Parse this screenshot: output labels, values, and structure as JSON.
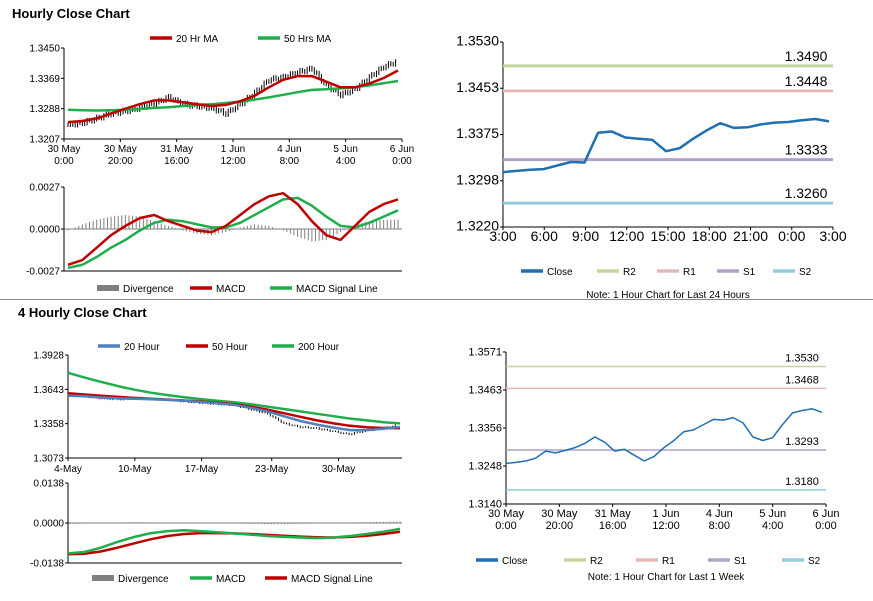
{
  "titles": {
    "hourly": "Hourly Close Chart",
    "four_hourly": "4 Hourly Close Chart"
  },
  "colors": {
    "close": "#1f6fb2",
    "ma_red": "#c00000",
    "ma_green": "#1fae4b",
    "ma_blue": "#4f81bd",
    "divergence": "#7f7f7f",
    "r2": "#c3d69b",
    "r1": "#e6b9b8",
    "s1": "#b3a2c7",
    "s2": "#93cddd",
    "price_bar": "#000000",
    "grid": "#d9d9d9"
  },
  "chart_data": [
    {
      "id": "hourly_price",
      "type": "line",
      "ylim": [
        1.3207,
        1.345
      ],
      "yticks": [
        "1.3450",
        "1.3369",
        "1.3288",
        "1.3207"
      ],
      "xticks": [
        [
          "30 May",
          "0:00"
        ],
        [
          "30 May",
          "20:00"
        ],
        [
          "31 May",
          "16:00"
        ],
        [
          "1 Jun",
          "12:00"
        ],
        [
          "4 Jun",
          "8:00"
        ],
        [
          "5 Jun",
          "4:00"
        ],
        [
          "6 Jun",
          "0:00"
        ]
      ],
      "price": [
        1.3245,
        1.325,
        1.3262,
        1.3275,
        1.3282,
        1.329,
        1.3302,
        1.3318,
        1.33,
        1.3295,
        1.329,
        1.3275,
        1.33,
        1.333,
        1.3365,
        1.3372,
        1.3385,
        1.3395,
        1.335,
        1.3325,
        1.334,
        1.3372,
        1.34,
        1.3415
      ],
      "series": [
        {
          "name": "20 Hr MA",
          "color": "#c00000",
          "values": [
            1.3252,
            1.3255,
            1.3262,
            1.3275,
            1.3288,
            1.33,
            1.331,
            1.331,
            1.3305,
            1.33,
            1.3295,
            1.3298,
            1.3308,
            1.3322,
            1.3345,
            1.3365,
            1.3375,
            1.3375,
            1.336,
            1.3345,
            1.3345,
            1.3355,
            1.337,
            1.339
          ]
        },
        {
          "name": "50 Hrs MA",
          "color": "#1fae4b",
          "values": [
            1.3285,
            1.3284,
            1.3283,
            1.3284,
            1.3285,
            1.3287,
            1.329,
            1.3292,
            1.3295,
            1.3298,
            1.33,
            1.3303,
            1.3307,
            1.3312,
            1.3318,
            1.3325,
            1.3332,
            1.3338,
            1.334,
            1.3342,
            1.3345,
            1.335,
            1.3356,
            1.3362
          ]
        }
      ]
    },
    {
      "id": "hourly_macd",
      "type": "line",
      "ylim": [
        -0.0027,
        0.0027
      ],
      "yticks": [
        "0.0027",
        "0.0000",
        "-0.0027"
      ],
      "divergence": [
        -0.0001,
        0.0003,
        0.0006,
        0.0008,
        0.0009,
        0.0008,
        0.0005,
        0.0002,
        -0.0001,
        -0.0003,
        -0.0004,
        -0.0002,
        0.0001,
        0.0003,
        0.0002,
        -0.0001,
        -0.0005,
        -0.0008,
        -0.0007,
        -0.0002,
        0.0003,
        0.0005,
        0.0006,
        0.0006
      ],
      "series": [
        {
          "name": "MACD",
          "color": "#c00000",
          "values": [
            -0.0023,
            -0.002,
            -0.0012,
            -0.0004,
            0.0002,
            0.0007,
            0.0009,
            0.0005,
            0.0002,
            -0.0001,
            -0.0002,
            0.0002,
            0.0009,
            0.0016,
            0.0021,
            0.0023,
            0.0016,
            0.0005,
            -0.0004,
            -0.0007,
            0.0002,
            0.0011,
            0.0016,
            0.0019
          ]
        },
        {
          "name": "MACD Signal Line",
          "color": "#1fae4b",
          "values": [
            -0.0025,
            -0.0023,
            -0.0018,
            -0.0012,
            -0.0007,
            -0.0001,
            0.0004,
            0.0006,
            0.0005,
            0.0003,
            0.0001,
            0.0001,
            0.0004,
            0.0009,
            0.0014,
            0.0019,
            0.002,
            0.0015,
            0.0008,
            0.0002,
            0.0001,
            0.0004,
            0.0008,
            0.0012
          ]
        }
      ],
      "legend": [
        "Divergence",
        "MACD",
        "MACD Signal Line"
      ]
    },
    {
      "id": "hourly_levels",
      "type": "line",
      "ylim": [
        1.322,
        1.353
      ],
      "yticks": [
        "1.3530",
        "1.3453",
        "1.3375",
        "1.3298",
        "1.3220"
      ],
      "xticks": [
        "3:00",
        "6:00",
        "9:00",
        "12:00",
        "15:00",
        "18:00",
        "21:00",
        "0:00",
        "3:00"
      ],
      "close": [
        1.3312,
        1.3314,
        1.3316,
        1.3317,
        1.3323,
        1.3329,
        1.3328,
        1.3378,
        1.338,
        1.337,
        1.3368,
        1.3366,
        1.3347,
        1.3352,
        1.3368,
        1.3382,
        1.3394,
        1.3386,
        1.3387,
        1.3392,
        1.3395,
        1.3396,
        1.3399,
        1.3401,
        1.3397
      ],
      "levels": [
        {
          "name": "R2",
          "value": 1.349,
          "label": "1.3490",
          "color": "#c3d69b"
        },
        {
          "name": "R1",
          "value": 1.3448,
          "label": "1.3448",
          "color": "#e6b9b8"
        },
        {
          "name": "S1",
          "value": 1.3333,
          "label": "1.3333",
          "color": "#b3a2c7"
        },
        {
          "name": "S2",
          "value": 1.326,
          "label": "1.3260",
          "color": "#93cddd"
        }
      ],
      "legend": [
        "Close",
        "R2",
        "R1",
        "S1",
        "S2"
      ],
      "note": "Note: 1 Hour Chart for Last 24 Hours"
    },
    {
      "id": "four_hourly_price",
      "type": "line",
      "ylim": [
        1.3073,
        1.3928
      ],
      "yticks": [
        "1.3928",
        "1.3643",
        "1.3358",
        "1.3073"
      ],
      "xticks": [
        "4-May",
        "10-May",
        "17-May",
        "23-May",
        "30-May"
      ],
      "price": [
        1.36,
        1.358,
        1.3565,
        1.356,
        1.357,
        1.356,
        1.3555,
        1.354,
        1.353,
        1.352,
        1.351,
        1.3475,
        1.344,
        1.336,
        1.333,
        1.332,
        1.3295,
        1.327,
        1.33,
        1.332,
        1.3345
      ],
      "series": [
        {
          "name": "20 Hour",
          "color": "#4f81bd",
          "values": [
            1.359,
            1.3585,
            1.3575,
            1.3568,
            1.3565,
            1.356,
            1.3555,
            1.3548,
            1.3538,
            1.3528,
            1.3515,
            1.349,
            1.346,
            1.342,
            1.338,
            1.335,
            1.3325,
            1.3305,
            1.3305,
            1.3315,
            1.333
          ]
        },
        {
          "name": "50 Hour",
          "color": "#c00000",
          "values": [
            1.361,
            1.36,
            1.359,
            1.358,
            1.3572,
            1.3565,
            1.3558,
            1.355,
            1.3542,
            1.3532,
            1.352,
            1.35,
            1.3475,
            1.3445,
            1.3415,
            1.3385,
            1.336,
            1.334,
            1.3328,
            1.3322,
            1.332
          ]
        },
        {
          "name": "200 Hour",
          "color": "#1fae4b",
          "values": [
            1.378,
            1.374,
            1.3705,
            1.367,
            1.364,
            1.3615,
            1.3595,
            1.3578,
            1.3562,
            1.3548,
            1.3535,
            1.352,
            1.35,
            1.348,
            1.346,
            1.344,
            1.342,
            1.34,
            1.3385,
            1.337,
            1.336
          ]
        }
      ]
    },
    {
      "id": "four_hourly_macd",
      "type": "line",
      "ylim": [
        -0.0138,
        0.0138
      ],
      "yticks": [
        "0.0138",
        "0.0000",
        "-0.0138"
      ],
      "divergence": [
        -0.0004,
        -0.0002,
        0.0,
        0.0002,
        0.0003,
        0.0002,
        0.0001,
        0.0001,
        0.0,
        -0.0001,
        -0.0002,
        -0.0003,
        -0.0004,
        -0.0004,
        -0.0003,
        -0.0002,
        0.0,
        0.0002,
        0.0003,
        0.0004,
        0.0005
      ],
      "series": [
        {
          "name": "MACD",
          "color": "#1fae4b",
          "values": [
            -0.0105,
            -0.01,
            -0.0085,
            -0.0065,
            -0.0048,
            -0.0035,
            -0.0028,
            -0.0025,
            -0.0028,
            -0.0032,
            -0.0036,
            -0.004,
            -0.0045,
            -0.0048,
            -0.005,
            -0.0052,
            -0.005,
            -0.0045,
            -0.0038,
            -0.003,
            -0.002
          ]
        },
        {
          "name": "MACD Signal Line",
          "color": "#c00000",
          "values": [
            -0.0108,
            -0.0106,
            -0.0098,
            -0.0085,
            -0.007,
            -0.0056,
            -0.0045,
            -0.0038,
            -0.0035,
            -0.0035,
            -0.0036,
            -0.0038,
            -0.0041,
            -0.0044,
            -0.0047,
            -0.0049,
            -0.005,
            -0.0048,
            -0.0044,
            -0.0038,
            -0.003
          ]
        }
      ],
      "legend": [
        "Divergence",
        "MACD",
        "MACD Signal Line"
      ]
    },
    {
      "id": "four_hourly_levels",
      "type": "line",
      "ylim": [
        1.314,
        1.3571
      ],
      "yticks": [
        "1.3571",
        "1.3463",
        "1.3356",
        "1.3248",
        "1.3140"
      ],
      "xticks": [
        [
          "30 May",
          "0:00"
        ],
        [
          "30 May",
          "20:00"
        ],
        [
          "31 May",
          "16:00"
        ],
        [
          "1 Jun",
          "12:00"
        ],
        [
          "4 Jun",
          "8:00"
        ],
        [
          "5 Jun",
          "4:00"
        ],
        [
          "6 Jun",
          "0:00"
        ]
      ],
      "close": [
        1.3255,
        1.3258,
        1.3262,
        1.327,
        1.329,
        1.3285,
        1.3292,
        1.33,
        1.3312,
        1.333,
        1.3315,
        1.329,
        1.3295,
        1.3278,
        1.3262,
        1.3275,
        1.33,
        1.332,
        1.3345,
        1.335,
        1.3365,
        1.338,
        1.3378,
        1.3385,
        1.337,
        1.333,
        1.332,
        1.3328,
        1.3365,
        1.3398,
        1.3405,
        1.341,
        1.34
      ],
      "levels": [
        {
          "name": "R2",
          "value": 1.353,
          "label": "1.3530",
          "color": "#c3d69b"
        },
        {
          "name": "R1",
          "value": 1.3468,
          "label": "1.3468",
          "color": "#e6b9b8"
        },
        {
          "name": "S1",
          "value": 1.3293,
          "label": "1.3293",
          "color": "#b3a2c7"
        },
        {
          "name": "S2",
          "value": 1.318,
          "label": "1.3180",
          "color": "#93cddd"
        }
      ],
      "legend": [
        "Close",
        "R2",
        "R1",
        "S1",
        "S2"
      ],
      "note": "Note: 1 Hour Chart for Last 1 Week"
    }
  ]
}
